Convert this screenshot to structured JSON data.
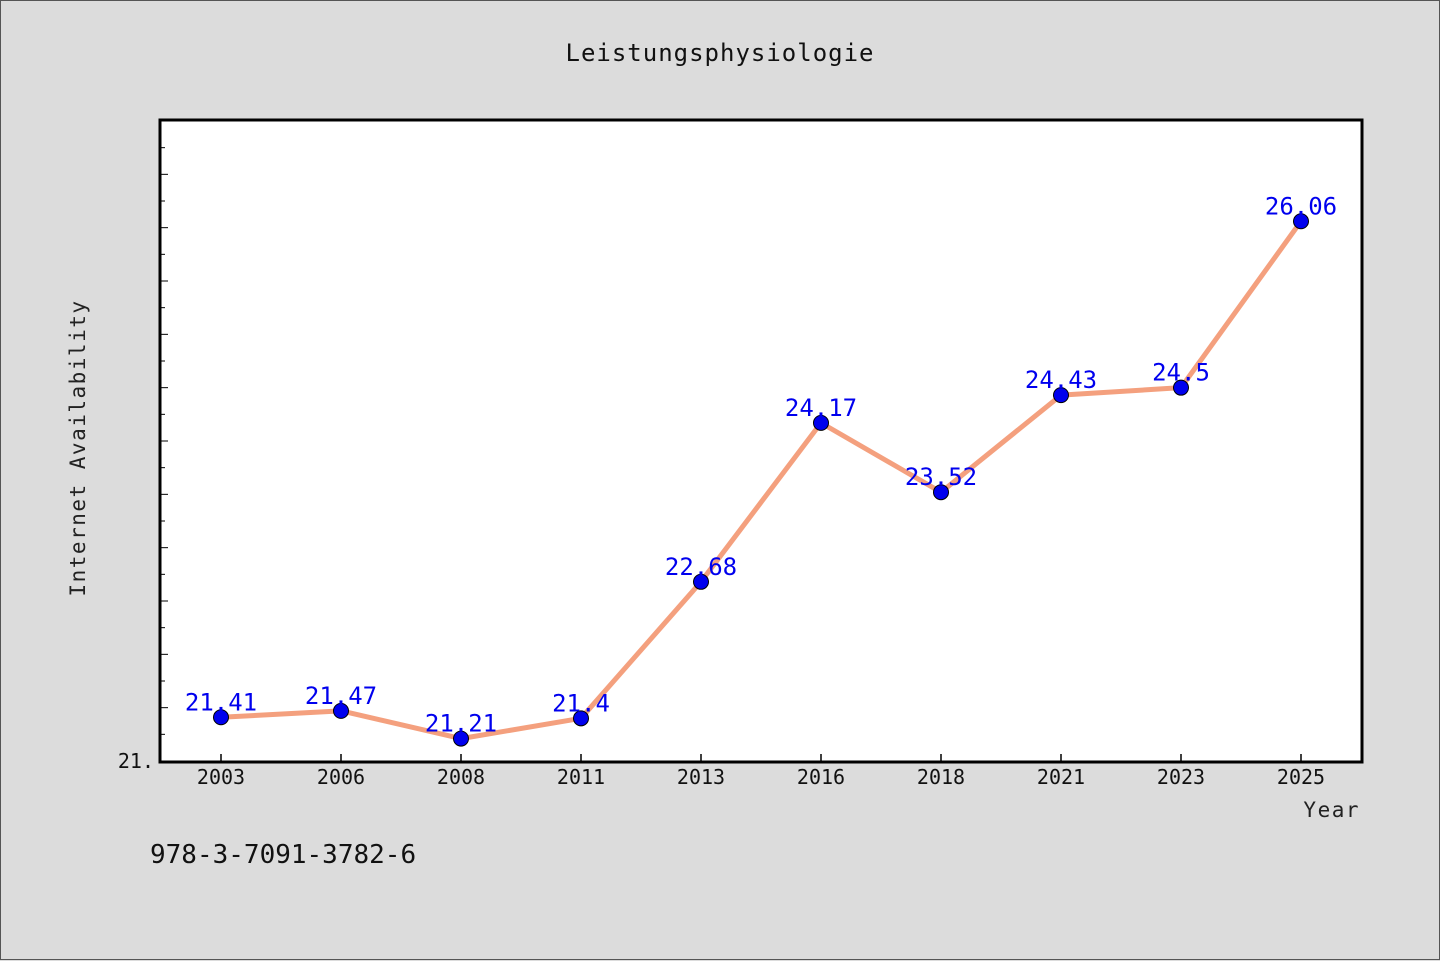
{
  "footer_text": "978-3-7091-3782-6",
  "chart_data": {
    "type": "line",
    "title": "Leistungsphysiologie",
    "xlabel": "Year",
    "ylabel": "Internet Availability",
    "categories": [
      "2003",
      "2006",
      "2008",
      "2011",
      "2013",
      "2016",
      "2018",
      "2021",
      "2023",
      "2025"
    ],
    "values": [
      21.41,
      21.47,
      21.21,
      21.4,
      22.68,
      24.17,
      23.52,
      24.43,
      24.5,
      26.06
    ],
    "data_labels": [
      "21.41",
      "21.47",
      "21.21",
      "21.4",
      "22.68",
      "24.17",
      "23.52",
      "24.43",
      "24.5",
      "26.06"
    ],
    "y_tick_label": "21.",
    "ylim": [
      21.0,
      27.0
    ],
    "grid": false,
    "line_color": "#f4a07e",
    "marker_color": "#0000ee",
    "label_color": "#0000ee",
    "background_color": "#dcdcdc",
    "plot_background": "#ffffff"
  }
}
